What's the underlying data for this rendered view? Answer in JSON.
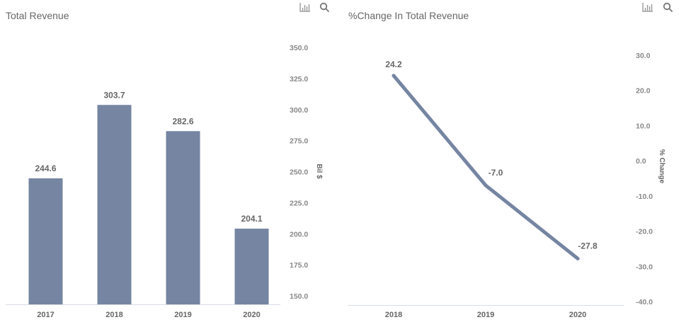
{
  "chart_data": [
    {
      "type": "bar",
      "title": "Total Revenue",
      "categories": [
        "2017",
        "2018",
        "2019",
        "2020"
      ],
      "values": [
        244.6,
        303.7,
        282.6,
        204.1
      ],
      "data_labels": [
        "244.6",
        "303.7",
        "282.6",
        "204.1"
      ],
      "xlabel": "",
      "ylabel": "Bil $",
      "ylim": [
        150,
        350
      ],
      "y_ticks": [
        "350.0",
        "325.0",
        "300.0",
        "275.0",
        "250.0",
        "225.0",
        "200.0",
        "175.0",
        "150.0"
      ],
      "y_tick_values": [
        350,
        325,
        300,
        275,
        250,
        225,
        200,
        175,
        150
      ],
      "y_axis_side": "right",
      "grid": false,
      "color": "#7585a2"
    },
    {
      "type": "line",
      "title": "%Change In Total Revenue",
      "categories": [
        "2018",
        "2019",
        "2020"
      ],
      "values": [
        24.2,
        -7.0,
        -27.8
      ],
      "data_labels": [
        "24.2",
        "-7.0",
        "-27.8"
      ],
      "xlabel": "",
      "ylabel": "% Change",
      "ylim": [
        -40,
        30
      ],
      "y_ticks": [
        "30.0",
        "20.0",
        "10.0",
        "0.0",
        "-10.0",
        "-20.0",
        "-30.0",
        "-40.0"
      ],
      "y_tick_values": [
        30,
        20,
        10,
        0,
        -10,
        -20,
        -30,
        -40
      ],
      "y_axis_side": "right",
      "grid": false,
      "color": "#7585a2"
    }
  ],
  "toolbar": {
    "chart_icon": "bar-chart-icon",
    "search_icon": "search-icon"
  }
}
